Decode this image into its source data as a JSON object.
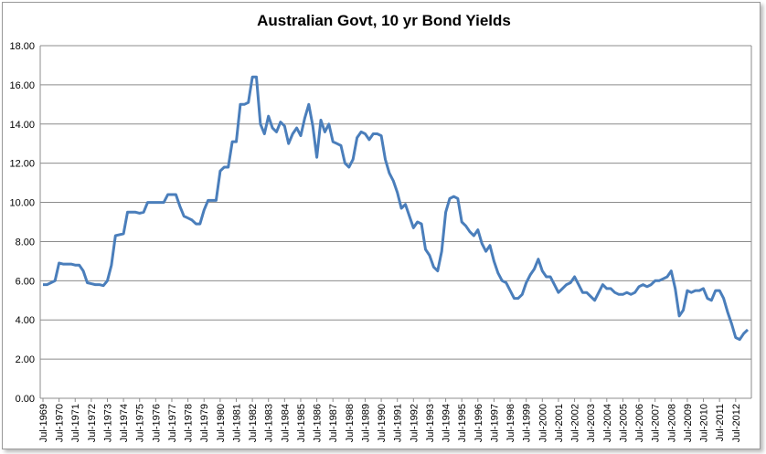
{
  "chart_data": {
    "type": "line",
    "title": "Australian Govt, 10 yr Bond Yields",
    "color": "#4a7ebb",
    "grid": true,
    "ylim": [
      0,
      18
    ],
    "yticks": [
      {
        "value": 0,
        "label": "0.00"
      },
      {
        "value": 2,
        "label": "2.00"
      },
      {
        "value": 4,
        "label": "4.00"
      },
      {
        "value": 6,
        "label": "6.00"
      },
      {
        "value": 8,
        "label": "8.00"
      },
      {
        "value": 10,
        "label": "10.00"
      },
      {
        "value": 12,
        "label": "12.00"
      },
      {
        "value": 14,
        "label": "14.00"
      },
      {
        "value": 16,
        "label": "16.00"
      },
      {
        "value": 18,
        "label": "18.00"
      }
    ],
    "categories": [
      "Jul-1969",
      null,
      null,
      null,
      "Jul-1970",
      null,
      null,
      null,
      "Jul-1971",
      null,
      null,
      null,
      "Jul-1972",
      null,
      null,
      null,
      "Jul-1973",
      null,
      null,
      null,
      "Jul-1974",
      null,
      null,
      null,
      "Jul-1975",
      null,
      null,
      null,
      "Jul-1976",
      null,
      null,
      null,
      "Jul-1977",
      null,
      null,
      null,
      "Jul-1978",
      null,
      null,
      null,
      "Jul-1979",
      null,
      null,
      null,
      "Jul-1980",
      null,
      null,
      null,
      "Jul-1981",
      null,
      null,
      null,
      "Jul-1982",
      null,
      null,
      null,
      "Jul-1983",
      null,
      null,
      null,
      "Jul-1984",
      null,
      null,
      null,
      "Jul-1985",
      null,
      null,
      null,
      "Jul-1986",
      null,
      null,
      null,
      "Jul-1987",
      null,
      null,
      null,
      "Jul-1988",
      null,
      null,
      null,
      "Jul-1989",
      null,
      null,
      null,
      "Jul-1990",
      null,
      null,
      null,
      "Jul-1991",
      null,
      null,
      null,
      "Jul-1992",
      null,
      null,
      null,
      "Jul-1993",
      null,
      null,
      null,
      "Jul-1994",
      null,
      null,
      null,
      "Jul-1995",
      null,
      null,
      null,
      "Jul-1996",
      null,
      null,
      null,
      "Jul-1997",
      null,
      null,
      null,
      "Jul-1998",
      null,
      null,
      null,
      "Jul-1999",
      null,
      null,
      null,
      "Jul-2000",
      null,
      null,
      null,
      "Jul-2001",
      null,
      null,
      null,
      "Jul-2002",
      null,
      null,
      null,
      "Jul-2003",
      null,
      null,
      null,
      "Jul-2004",
      null,
      null,
      null,
      "Jul-2005",
      null,
      null,
      null,
      "Jul-2006",
      null,
      null,
      null,
      "Jul-2007",
      null,
      null,
      null,
      "Jul-2008",
      null,
      null,
      null,
      "Jul-2009",
      null,
      null,
      null,
      "Jul-2010",
      null,
      null,
      null,
      "Jul-2011",
      null,
      null,
      null,
      "Jul-2012",
      null,
      null,
      null
    ],
    "values": [
      5.8,
      5.8,
      5.9,
      6.0,
      6.9,
      6.85,
      6.85,
      6.85,
      6.8,
      6.8,
      6.5,
      5.9,
      5.85,
      5.8,
      5.8,
      5.75,
      6.0,
      6.8,
      8.3,
      8.35,
      8.4,
      9.5,
      9.5,
      9.5,
      9.45,
      9.5,
      10.0,
      10.0,
      10.0,
      10.0,
      10.0,
      10.4,
      10.4,
      10.4,
      9.8,
      9.3,
      9.2,
      9.1,
      8.9,
      8.9,
      9.6,
      10.1,
      10.1,
      10.1,
      11.6,
      11.8,
      11.8,
      13.1,
      13.1,
      15.0,
      15.0,
      15.1,
      16.4,
      16.4,
      14.0,
      13.5,
      14.4,
      13.8,
      13.6,
      14.1,
      13.9,
      13.0,
      13.5,
      13.8,
      13.4,
      14.3,
      15.0,
      13.9,
      12.3,
      14.2,
      13.6,
      14.0,
      13.1,
      13.0,
      12.9,
      12.0,
      11.8,
      12.2,
      13.3,
      13.6,
      13.5,
      13.2,
      13.5,
      13.5,
      13.4,
      12.2,
      11.5,
      11.1,
      10.5,
      9.7,
      9.9,
      9.3,
      8.7,
      9.0,
      8.9,
      7.6,
      7.3,
      6.7,
      6.5,
      7.5,
      9.5,
      10.2,
      10.3,
      10.2,
      9.0,
      8.8,
      8.5,
      8.3,
      8.6,
      7.9,
      7.5,
      7.8,
      7.0,
      6.4,
      6.0,
      5.9,
      5.5,
      5.1,
      5.1,
      5.3,
      5.9,
      6.3,
      6.6,
      7.1,
      6.5,
      6.2,
      6.2,
      5.8,
      5.4,
      5.6,
      5.8,
      5.9,
      6.2,
      5.8,
      5.4,
      5.4,
      5.2,
      5.0,
      5.4,
      5.8,
      5.6,
      5.6,
      5.4,
      5.3,
      5.3,
      5.4,
      5.3,
      5.4,
      5.7,
      5.8,
      5.7,
      5.8,
      6.0,
      6.0,
      6.1,
      6.2,
      6.5,
      5.6,
      4.2,
      4.5,
      5.5,
      5.4,
      5.5,
      5.5,
      5.6,
      5.1,
      5.0,
      5.5,
      5.5,
      5.1,
      4.4,
      3.8,
      3.1,
      3.0,
      3.3,
      3.5
    ]
  }
}
